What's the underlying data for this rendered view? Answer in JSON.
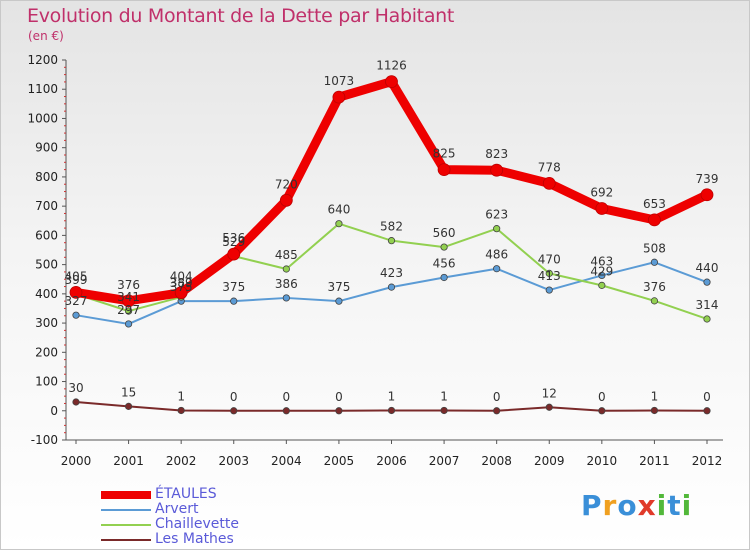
{
  "chart": {
    "title": "Evolution du Montant de la Dette par Habitant",
    "unit": "(en €)"
  },
  "brand": {
    "letters": [
      {
        "ch": "P",
        "color": "#3a8fd8"
      },
      {
        "ch": "r",
        "color": "#f0a020"
      },
      {
        "ch": "o",
        "color": "#3a8fd8"
      },
      {
        "ch": "x",
        "color": "#e03a2a"
      },
      {
        "ch": "i",
        "color": "#52b83a"
      },
      {
        "ch": "t",
        "color": "#3a8fd8"
      },
      {
        "ch": "i",
        "color": "#52b83a"
      }
    ]
  },
  "chart_data": {
    "type": "line",
    "title": "Evolution du Montant de la Dette par Habitant",
    "subtitle": "(en €)",
    "xlabel": "",
    "ylabel": "",
    "x": [
      "2000",
      "2001",
      "2002",
      "2003",
      "2004",
      "2005",
      "2006",
      "2007",
      "2008",
      "2009",
      "2010",
      "2011",
      "2012"
    ],
    "ylim": [
      -100,
      1200
    ],
    "yticks": [
      -100,
      0,
      100,
      200,
      300,
      400,
      500,
      600,
      700,
      800,
      900,
      1000,
      1100,
      1200
    ],
    "grid": false,
    "legend_position": "bottom-left",
    "series": [
      {
        "name": "ÉTAULES",
        "color": "#ee0000",
        "width": 9,
        "values": [
          405,
          376,
          404,
          536,
          720,
          1073,
          1126,
          825,
          823,
          778,
          692,
          653,
          739
        ],
        "labels": [
          "405",
          "376",
          "404",
          "536",
          "720",
          "1073",
          "1126",
          "825",
          "823",
          "778",
          "692",
          "653",
          "739"
        ]
      },
      {
        "name": "Arvert",
        "color": "#5b9bd5",
        "width": 2,
        "values": [
          327,
          297,
          375,
          375,
          386,
          375,
          423,
          456,
          486,
          413,
          463,
          508,
          440
        ],
        "labels": [
          "327",
          "297",
          "375",
          "375",
          "386",
          "375",
          "423",
          "456",
          "486",
          "413",
          "463",
          "508",
          "440"
        ]
      },
      {
        "name": "Chaillevette",
        "color": "#92d050",
        "width": 2,
        "values": [
          399,
          341,
          389,
          529,
          485,
          640,
          582,
          560,
          623,
          470,
          429,
          376,
          314
        ],
        "labels": [
          "399",
          "341",
          "389",
          "529",
          "485",
          "640",
          "582",
          "560",
          "623",
          "470",
          "429",
          "376",
          "314"
        ]
      },
      {
        "name": "Les Mathes",
        "color": "#7a2a2a",
        "width": 2,
        "values": [
          30,
          15,
          1,
          0,
          0,
          0,
          1,
          1,
          0,
          12,
          0,
          1,
          0
        ],
        "labels": [
          "30",
          "15",
          "1",
          "0",
          "0",
          "0",
          "1",
          "1",
          "0",
          "12",
          "0",
          "1",
          "0"
        ]
      }
    ]
  }
}
